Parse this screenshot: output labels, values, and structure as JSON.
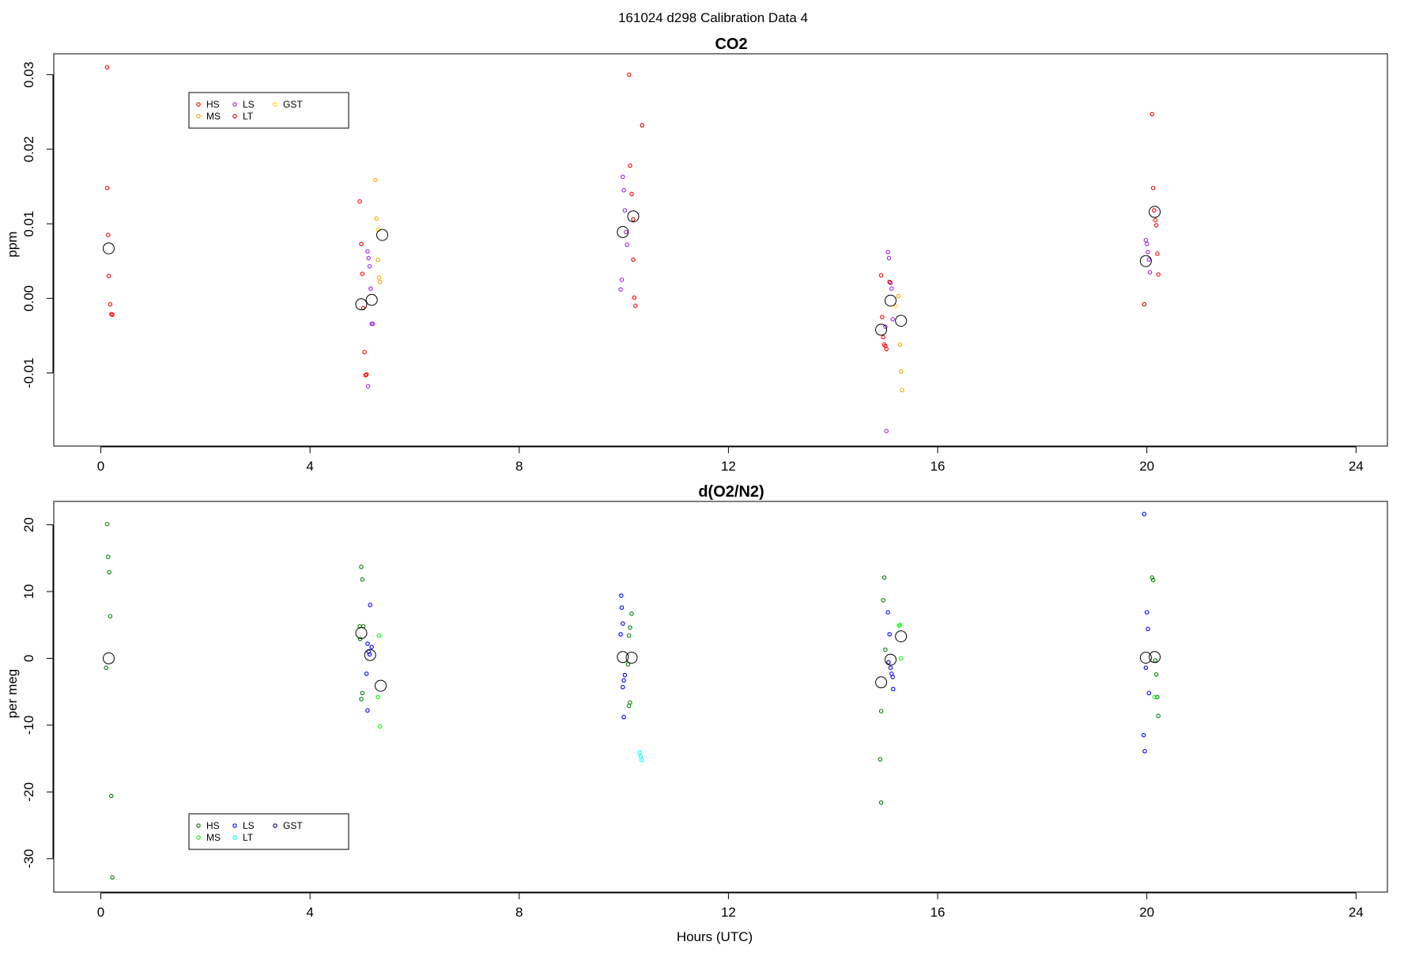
{
  "suptitle": "161024   d298   Calibration Data 4",
  "chart_data": [
    {
      "type": "scatter",
      "title": "CO2",
      "xlabel": "",
      "ylabel": "ppm",
      "xlim": [
        -0.9,
        24.6
      ],
      "ylim": [
        -0.0198,
        0.0328
      ],
      "xticks": [
        0,
        4,
        8,
        12,
        16,
        20,
        24
      ],
      "yticks": [
        -0.01,
        0.0,
        0.01,
        0.02,
        0.03
      ],
      "ytick_labels": [
        "-0.01",
        "0.00",
        "0.01",
        "0.02",
        "0.03"
      ],
      "legend": {
        "placement": "top-left",
        "entries": [
          {
            "name": "HS",
            "color": "#ff0000"
          },
          {
            "name": "MS",
            "color": "#ffa500"
          },
          {
            "name": "LS",
            "color": "#a020f0"
          },
          {
            "name": "LT",
            "color": "#cd0000"
          },
          {
            "name": "GST",
            "color": "#ffd700"
          }
        ]
      },
      "series": [
        {
          "name": "HS",
          "color": "#ff0000",
          "points": [
            [
              0.12,
              0.031
            ],
            [
              0.12,
              0.0148
            ],
            [
              0.14,
              0.0085
            ],
            [
              0.15,
              0.003
            ],
            [
              0.18,
              -0.0008
            ],
            [
              0.2,
              -0.0021
            ],
            [
              0.22,
              -0.0022
            ],
            [
              4.95,
              0.013
            ],
            [
              4.98,
              0.0073
            ],
            [
              5.0,
              0.0033
            ],
            [
              5.02,
              -0.0013
            ],
            [
              5.04,
              -0.0072
            ],
            [
              5.06,
              -0.0103
            ],
            [
              5.08,
              -0.0102
            ],
            [
              10.1,
              0.03
            ],
            [
              10.12,
              0.0178
            ],
            [
              10.15,
              0.014
            ],
            [
              10.18,
              0.0052
            ],
            [
              10.2,
              0.0001
            ],
            [
              10.22,
              -0.001
            ],
            [
              14.92,
              0.0031
            ],
            [
              14.94,
              -0.0025
            ],
            [
              14.96,
              -0.0052
            ],
            [
              14.98,
              -0.0062
            ],
            [
              15.0,
              -0.0064
            ],
            [
              15.02,
              -0.0068
            ],
            [
              20.1,
              0.0247
            ],
            [
              20.12,
              0.0148
            ],
            [
              20.14,
              0.0118
            ],
            [
              20.16,
              0.0105
            ],
            [
              20.18,
              0.0098
            ],
            [
              20.2,
              0.006
            ],
            [
              20.22,
              0.0032
            ]
          ]
        },
        {
          "name": "MS",
          "color": "#ffa500",
          "points": [
            [
              5.25,
              0.0159
            ],
            [
              5.27,
              0.0107
            ],
            [
              5.3,
              0.0052
            ],
            [
              5.32,
              0.0028
            ],
            [
              5.34,
              0.0022
            ],
            [
              15.25,
              0.0003
            ],
            [
              15.28,
              -0.0062
            ],
            [
              15.3,
              -0.0098
            ],
            [
              15.32,
              -0.0123
            ]
          ]
        },
        {
          "name": "LS",
          "color": "#a020f0",
          "points": [
            [
              5.1,
              0.0063
            ],
            [
              5.12,
              0.0054
            ],
            [
              5.14,
              0.0043
            ],
            [
              5.16,
              0.0013
            ],
            [
              5.18,
              -0.0034
            ],
            [
              5.2,
              -0.0034
            ],
            [
              5.11,
              -0.0118
            ],
            [
              9.98,
              0.0163
            ],
            [
              10.0,
              0.0145
            ],
            [
              10.02,
              0.0118
            ],
            [
              10.04,
              0.0089
            ],
            [
              10.06,
              0.0072
            ],
            [
              9.96,
              0.0025
            ],
            [
              9.94,
              0.0012
            ],
            [
              15.05,
              0.0062
            ],
            [
              15.07,
              0.0054
            ],
            [
              15.1,
              0.0021
            ],
            [
              15.12,
              0.0013
            ],
            [
              15.14,
              -0.0028
            ],
            [
              15.0,
              -0.0038
            ],
            [
              15.02,
              -0.0178
            ],
            [
              19.98,
              0.0078
            ],
            [
              20.0,
              0.0073
            ],
            [
              20.02,
              0.0062
            ],
            [
              20.04,
              0.0052
            ],
            [
              20.06,
              0.0035
            ]
          ]
        },
        {
          "name": "LT",
          "color": "#cd0000",
          "points": [
            [
              10.35,
              0.0232
            ],
            [
              10.18,
              0.0106
            ],
            [
              15.08,
              0.0022
            ],
            [
              19.95,
              -0.0008
            ]
          ]
        },
        {
          "name": "GST",
          "color": "#ffd700",
          "points": [
            [
              5.3,
              0.0092
            ],
            [
              15.2,
              -0.001
            ]
          ]
        },
        {
          "name": "mean",
          "color": "#000000",
          "points": [
            [
              0.15,
              0.0067
            ],
            [
              4.98,
              -0.0008
            ],
            [
              5.18,
              -0.0002
            ],
            [
              5.38,
              0.0085
            ],
            [
              9.98,
              0.0089
            ],
            [
              10.18,
              0.011
            ],
            [
              14.92,
              -0.0042
            ],
            [
              15.1,
              -0.0003
            ],
            [
              15.3,
              -0.003
            ],
            [
              19.98,
              0.005
            ],
            [
              20.15,
              0.0116
            ]
          ]
        }
      ]
    },
    {
      "type": "scatter",
      "title": "d(O2/N2)",
      "xlabel": "Hours (UTC)",
      "ylabel": "per meg",
      "xlim": [
        -0.9,
        24.6
      ],
      "ylim": [
        -35.0,
        23.5
      ],
      "xticks": [
        0,
        4,
        8,
        12,
        16,
        20,
        24
      ],
      "yticks": [
        -30,
        -20,
        -10,
        0,
        10,
        20
      ],
      "ytick_labels": [
        "-30",
        "-20",
        "-10",
        "0",
        "10",
        "20"
      ],
      "legend": {
        "placement": "bottom-left",
        "entries": [
          {
            "name": "HS",
            "color": "#008000"
          },
          {
            "name": "MS",
            "color": "#00ff00"
          },
          {
            "name": "LS",
            "color": "#0000ff"
          },
          {
            "name": "LT",
            "color": "#00ffff"
          },
          {
            "name": "GST",
            "color": "#00008b"
          }
        ]
      },
      "series": [
        {
          "name": "HS",
          "color": "#008000",
          "points": [
            [
              0.12,
              20.1
            ],
            [
              0.14,
              15.2
            ],
            [
              0.16,
              12.9
            ],
            [
              0.18,
              6.3
            ],
            [
              0.1,
              -1.4
            ],
            [
              0.2,
              -20.6
            ],
            [
              0.22,
              -32.8
            ],
            [
              4.98,
              13.7
            ],
            [
              5.0,
              11.8
            ],
            [
              4.95,
              4.8
            ],
            [
              5.02,
              4.8
            ],
            [
              4.96,
              2.9
            ],
            [
              5.0,
              -5.2
            ],
            [
              4.98,
              -6.1
            ],
            [
              10.15,
              6.7
            ],
            [
              10.12,
              4.6
            ],
            [
              10.1,
              3.4
            ],
            [
              10.08,
              -0.9
            ],
            [
              10.12,
              -6.6
            ],
            [
              10.1,
              -7.1
            ],
            [
              14.98,
              12.1
            ],
            [
              14.96,
              8.7
            ],
            [
              15.0,
              1.3
            ],
            [
              14.92,
              -7.9
            ],
            [
              14.9,
              -15.1
            ],
            [
              14.92,
              -21.6
            ],
            [
              20.1,
              12.1
            ],
            [
              20.12,
              11.7
            ],
            [
              20.16,
              -0.3
            ],
            [
              20.18,
              -2.4
            ],
            [
              20.2,
              -5.8
            ],
            [
              20.22,
              -8.6
            ]
          ]
        },
        {
          "name": "MS",
          "color": "#00ff00",
          "points": [
            [
              5.32,
              3.4
            ],
            [
              5.3,
              -5.8
            ],
            [
              5.34,
              -10.2
            ],
            [
              15.28,
              5.0
            ],
            [
              15.26,
              4.9
            ],
            [
              15.3,
              0.0
            ],
            [
              20.15,
              -5.8
            ]
          ]
        },
        {
          "name": "LS",
          "color": "#0000ff",
          "points": [
            [
              5.15,
              8.0
            ],
            [
              5.1,
              2.2
            ],
            [
              5.18,
              1.7
            ],
            [
              5.12,
              1.0
            ],
            [
              5.14,
              0.6
            ],
            [
              5.08,
              -2.3
            ],
            [
              5.1,
              -7.8
            ],
            [
              9.95,
              9.4
            ],
            [
              9.96,
              7.6
            ],
            [
              9.98,
              5.2
            ],
            [
              9.94,
              3.6
            ],
            [
              10.02,
              -2.5
            ],
            [
              10.0,
              -3.3
            ],
            [
              9.98,
              -4.3
            ],
            [
              10.0,
              -8.8
            ],
            [
              15.05,
              6.9
            ],
            [
              15.08,
              3.6
            ],
            [
              15.1,
              -1.4
            ],
            [
              15.12,
              -2.3
            ],
            [
              15.14,
              -2.8
            ],
            [
              15.15,
              -4.6
            ],
            [
              19.95,
              21.6
            ],
            [
              20.0,
              6.9
            ],
            [
              20.02,
              4.4
            ],
            [
              19.98,
              -1.4
            ],
            [
              20.04,
              -5.2
            ],
            [
              19.94,
              -11.5
            ],
            [
              19.96,
              -13.9
            ]
          ]
        },
        {
          "name": "LT",
          "color": "#00ffff",
          "points": [
            [
              10.3,
              -14.1
            ],
            [
              10.32,
              -14.7
            ],
            [
              10.34,
              -15.2
            ]
          ]
        },
        {
          "name": "GST",
          "color": "#00008b",
          "points": [
            [
              15.06,
              -0.6
            ]
          ]
        },
        {
          "name": "mean",
          "color": "#000000",
          "points": [
            [
              0.15,
              0.0
            ],
            [
              4.98,
              3.8
            ],
            [
              5.15,
              0.5
            ],
            [
              5.35,
              -4.1
            ],
            [
              9.98,
              0.2
            ],
            [
              10.15,
              0.1
            ],
            [
              14.92,
              -3.6
            ],
            [
              15.1,
              -0.2
            ],
            [
              15.3,
              3.3
            ],
            [
              19.98,
              0.1
            ],
            [
              20.15,
              0.2
            ]
          ]
        }
      ]
    }
  ]
}
